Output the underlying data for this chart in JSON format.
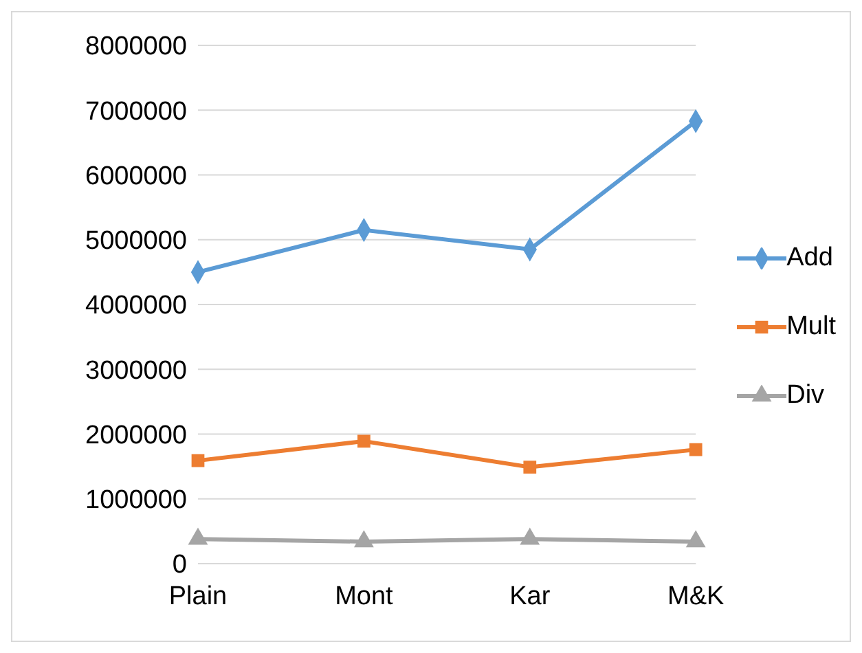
{
  "chart_data": {
    "type": "line",
    "categories": [
      "Plain",
      "Mont",
      "Kar",
      "M&K"
    ],
    "series": [
      {
        "name": "Add",
        "color": "#5b9bd5",
        "marker": "diamond",
        "values": [
          4500000,
          5150000,
          4850000,
          6830000
        ]
      },
      {
        "name": "Mult",
        "color": "#ed7d31",
        "marker": "square",
        "values": [
          1590000,
          1890000,
          1490000,
          1760000
        ]
      },
      {
        "name": "Div",
        "color": "#a5a5a5",
        "marker": "triangle",
        "values": [
          380000,
          340000,
          380000,
          340000
        ]
      }
    ],
    "ylim": [
      0,
      8000000
    ],
    "yticks": [
      0,
      1000000,
      2000000,
      3000000,
      4000000,
      5000000,
      6000000,
      7000000,
      8000000
    ],
    "grid": "y",
    "legend": "right"
  }
}
